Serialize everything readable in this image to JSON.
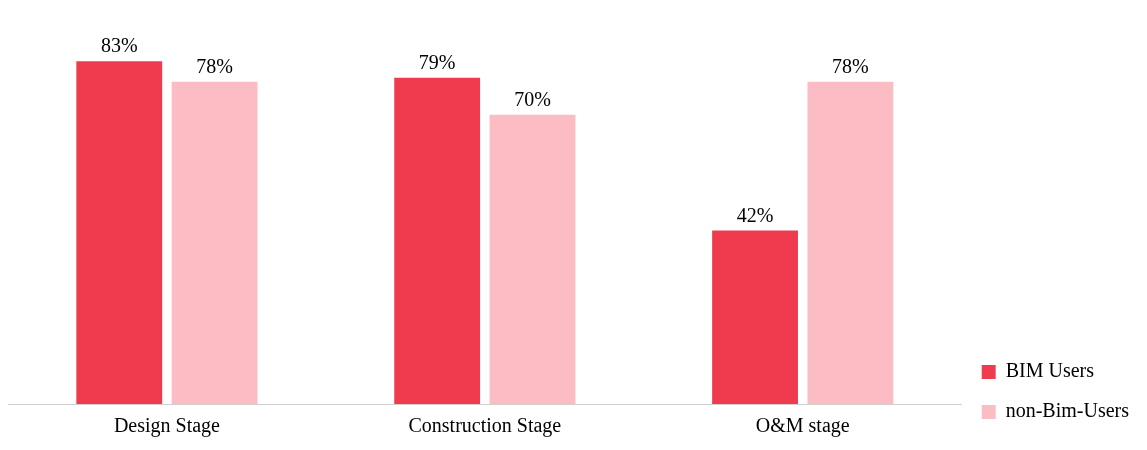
{
  "chart_data": {
    "type": "bar",
    "categories": [
      "Design Stage",
      "Construction Stage",
      "O&M stage"
    ],
    "series": [
      {
        "name": "BIM Users",
        "color": "#ef3b4d",
        "values": [
          83,
          79,
          42
        ],
        "value_labels": [
          "83%",
          "79%",
          "42%"
        ]
      },
      {
        "name": "non-Bim-Users",
        "color": "#fbbcc4",
        "values": [
          78,
          70,
          78
        ],
        "value_labels": [
          "78%",
          "70%",
          "78%"
        ]
      }
    ],
    "legend": "right"
  }
}
